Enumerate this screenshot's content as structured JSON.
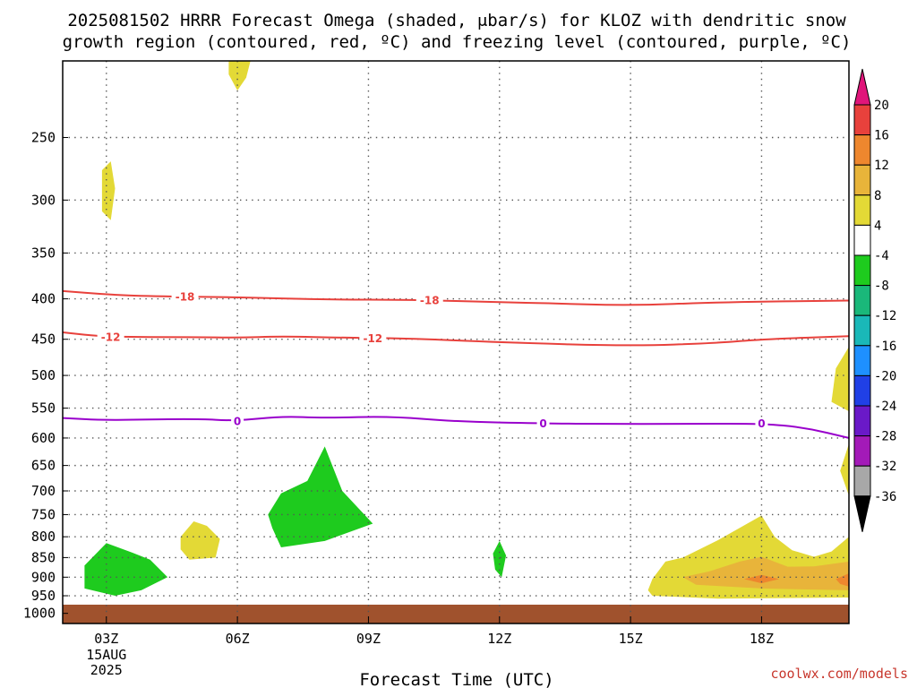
{
  "title": {
    "line1": "2025081502 HRRR Forecast Omega (shaded, μbar/s) for KLOZ with dendritic snow",
    "line2": "growth region (contoured, red, ºC) and freezing level (contoured, purple, ºC)"
  },
  "xlabel": "Forecast Time (UTC)",
  "credit": "coolwx.com/models",
  "chart_data": {
    "type": "time-height cross section",
    "x_range_hours": [
      2,
      20
    ],
    "x_ticks": [
      {
        "hour": 3,
        "label": "03Z",
        "sub": [
          "15AUG",
          "2025"
        ]
      },
      {
        "hour": 6,
        "label": "06Z"
      },
      {
        "hour": 9,
        "label": "09Z"
      },
      {
        "hour": 12,
        "label": "12Z"
      },
      {
        "hour": 15,
        "label": "15Z"
      },
      {
        "hour": 18,
        "label": "18Z"
      }
    ],
    "y_ticks": [
      250,
      300,
      350,
      400,
      450,
      500,
      550,
      600,
      650,
      700,
      750,
      800,
      850,
      900,
      950,
      1000
    ],
    "y_range_mb": [
      200,
      1030
    ],
    "contours": [
      {
        "label": "-18",
        "color": "#e8413c",
        "points": [
          [
            2.0,
            391
          ],
          [
            3.0,
            395
          ],
          [
            4.0,
            397
          ],
          [
            6.0,
            398
          ],
          [
            8.0,
            401
          ],
          [
            10.0,
            401
          ],
          [
            12.0,
            404
          ],
          [
            13.0,
            405
          ],
          [
            15.0,
            408
          ],
          [
            17.0,
            404
          ],
          [
            20.0,
            402
          ]
        ],
        "label_hours": [
          4.8,
          10.4
        ]
      },
      {
        "label": "-12",
        "color": "#e8413c",
        "points": [
          [
            2.0,
            441
          ],
          [
            3.0,
            447
          ],
          [
            5.0,
            447
          ],
          [
            6.0,
            448
          ],
          [
            7.0,
            446
          ],
          [
            8.5,
            448
          ],
          [
            10.0,
            449
          ],
          [
            12.0,
            454
          ],
          [
            15.0,
            459
          ],
          [
            17.0,
            455
          ],
          [
            18.0,
            450
          ],
          [
            20.0,
            446
          ]
        ],
        "label_hours": [
          3.1,
          9.1
        ]
      },
      {
        "label": "0",
        "color": "#9900cc",
        "points": [
          [
            2.0,
            566
          ],
          [
            3.0,
            570
          ],
          [
            5.0,
            567
          ],
          [
            6.0,
            571
          ],
          [
            7.0,
            563
          ],
          [
            8.0,
            566
          ],
          [
            9.5,
            563
          ],
          [
            11.0,
            572
          ],
          [
            13.0,
            575
          ],
          [
            14.5,
            576
          ],
          [
            16.0,
            576
          ],
          [
            18.0,
            575
          ],
          [
            19.0,
            582
          ],
          [
            20.0,
            600
          ]
        ],
        "label_hours": [
          6.0,
          13.0,
          18.0
        ]
      }
    ],
    "shaded_areas": [
      {
        "category": "4 to 8",
        "color": "#e3d936",
        "points": [
          [
            5.8,
            200
          ],
          [
            6.3,
            200
          ],
          [
            6.2,
            210
          ],
          [
            6.0,
            218
          ],
          [
            5.8,
            208
          ]
        ]
      },
      {
        "category": "4 to 8",
        "color": "#e3d936",
        "points": [
          [
            2.9,
            275
          ],
          [
            3.1,
            268
          ],
          [
            3.2,
            290
          ],
          [
            3.1,
            318
          ],
          [
            2.9,
            310
          ]
        ]
      },
      {
        "category": "4 to 8",
        "color": "#e3d936",
        "points": [
          [
            4.7,
            800
          ],
          [
            5.0,
            765
          ],
          [
            5.3,
            775
          ],
          [
            5.6,
            805
          ],
          [
            5.5,
            850
          ],
          [
            4.9,
            855
          ],
          [
            4.7,
            830
          ]
        ]
      },
      {
        "category": "4 to 8",
        "color": "#e3d936",
        "points": [
          [
            15.4,
            935
          ],
          [
            15.5,
            905
          ],
          [
            15.8,
            860
          ],
          [
            16.2,
            850
          ],
          [
            17.0,
            808
          ],
          [
            18.0,
            752
          ],
          [
            18.3,
            800
          ],
          [
            18.7,
            832
          ],
          [
            19.2,
            848
          ],
          [
            19.6,
            835
          ],
          [
            20.0,
            800
          ],
          [
            20.0,
            955
          ],
          [
            17.0,
            958
          ],
          [
            15.5,
            950
          ]
        ]
      },
      {
        "category": "4 to 8",
        "color": "#e3d936",
        "points": [
          [
            20.0,
            460
          ],
          [
            19.7,
            490
          ],
          [
            19.6,
            540
          ],
          [
            20.0,
            555
          ]
        ]
      },
      {
        "category": "4 to 8",
        "color": "#e3d936",
        "points": [
          [
            20.0,
            610
          ],
          [
            19.8,
            660
          ],
          [
            20.0,
            710
          ]
        ]
      },
      {
        "category": "8 to 12",
        "color": "#e8b43a",
        "points": [
          [
            16.2,
            900
          ],
          [
            16.8,
            885
          ],
          [
            17.5,
            860
          ],
          [
            18.0,
            848
          ],
          [
            18.6,
            873
          ],
          [
            19.2,
            872
          ],
          [
            20.0,
            860
          ],
          [
            20.0,
            935
          ],
          [
            18.0,
            930
          ],
          [
            16.5,
            920
          ]
        ]
      },
      {
        "category": "12 to 16",
        "color": "#ee872e",
        "points": [
          [
            17.6,
            905
          ],
          [
            18.0,
            894
          ],
          [
            18.4,
            905
          ],
          [
            18.0,
            916
          ]
        ]
      },
      {
        "category": "12 to 16",
        "color": "#ee872e",
        "points": [
          [
            19.7,
            905
          ],
          [
            20.0,
            890
          ],
          [
            20.0,
            925
          ],
          [
            19.8,
            918
          ]
        ]
      },
      {
        "category": "-4 to -8",
        "color": "#1ecb1e",
        "points": [
          [
            2.5,
            870
          ],
          [
            3.0,
            815
          ],
          [
            3.6,
            838
          ],
          [
            4.0,
            855
          ],
          [
            4.4,
            900
          ],
          [
            3.8,
            935
          ],
          [
            3.2,
            950
          ],
          [
            2.5,
            930
          ]
        ]
      },
      {
        "category": "-4 to -8",
        "color": "#1ecb1e",
        "points": [
          [
            6.7,
            750
          ],
          [
            7.0,
            705
          ],
          [
            7.6,
            680
          ],
          [
            8.0,
            615
          ],
          [
            8.4,
            700
          ],
          [
            9.1,
            770
          ],
          [
            8.0,
            810
          ],
          [
            7.0,
            825
          ],
          [
            6.8,
            780
          ]
        ]
      },
      {
        "category": "-4 to -8",
        "color": "#1ecb1e",
        "points": [
          [
            11.85,
            840
          ],
          [
            12.0,
            810
          ],
          [
            12.15,
            845
          ],
          [
            12.05,
            900
          ],
          [
            11.9,
            880
          ]
        ]
      }
    ],
    "surface_band": {
      "color": "#a0522d",
      "from_mb": 975,
      "to_mb": 1030
    },
    "colorbar": {
      "labels": [
        "20",
        "16",
        "12",
        "8",
        "4",
        "-4",
        "-8",
        "-12",
        "-16",
        "-20",
        "-24",
        "-28",
        "-32",
        "-36"
      ],
      "colors": [
        "#e8413c",
        "#ee872e",
        "#e8b43a",
        "#e3d936",
        "#ffffff",
        "#1ecb1e",
        "#1ab87a",
        "#1ab8b8",
        "#1e90ff",
        "#2040e6",
        "#6a19c8",
        "#a31ab8",
        "#a8a8a8"
      ],
      "top_arrow_color": "#e0157a",
      "bottom_arrow_color": "#000000"
    }
  }
}
